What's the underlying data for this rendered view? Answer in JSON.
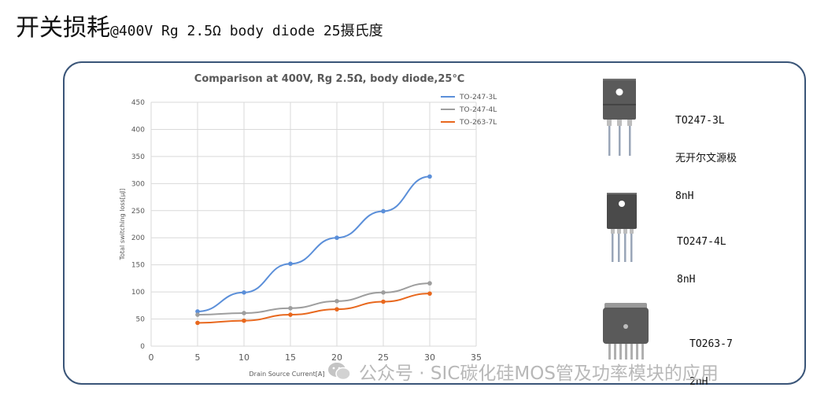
{
  "slide": {
    "title_main": "开关损耗",
    "title_sub": "@400V Rg 2.5Ω body diode 25摄氏度"
  },
  "packages": [
    {
      "line1": "TO247-3L",
      "line2": "无开尔文源极",
      "line3": "8nH"
    },
    {
      "line1": "TO247-4L",
      "line2": "8nH",
      "line3": ""
    },
    {
      "line1": "TO263-7",
      "line2": "2nH",
      "line3": ""
    }
  ],
  "watermark": {
    "text": "公众号 · SIC碳化硅MOS管及功率模块的应用"
  },
  "chart_data": {
    "type": "line",
    "title": "Comparison at 400V, Rg 2.5Ω, body diode,25℃",
    "xlabel": "Drain Source Current[A]",
    "ylabel": "Total switching loss[μJ]",
    "xlim": [
      0,
      35
    ],
    "ylim": [
      0,
      450
    ],
    "x_ticks": [
      "0",
      "5",
      "10",
      "15",
      "20",
      "25",
      "30",
      "35"
    ],
    "y_ticks": [
      "0",
      "50",
      "100",
      "150",
      "200",
      "250",
      "300",
      "350",
      "400",
      "450"
    ],
    "grid": true,
    "legend_position": "top-right",
    "x": [
      5,
      10,
      15,
      20,
      25,
      30
    ],
    "series": [
      {
        "name": "TO-247-3L",
        "color": "#5b8fd9",
        "values": [
          64,
          99,
          152,
          200,
          249,
          313
        ]
      },
      {
        "name": "TO-247-4L",
        "color": "#9e9e9e",
        "values": [
          58,
          61,
          70,
          83,
          99,
          116
        ]
      },
      {
        "name": "TO-263-7L",
        "color": "#e8681e",
        "values": [
          43,
          47,
          58,
          68,
          82,
          97
        ]
      }
    ]
  }
}
